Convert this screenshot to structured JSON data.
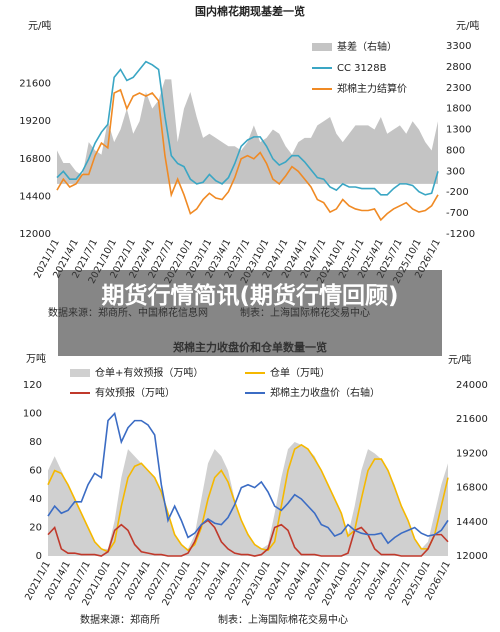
{
  "overlay_title": "期货行情简讯(期货行情回顾)",
  "chart_data": [
    {
      "type": "line",
      "title": "国内棉花期现基差一览",
      "y_label": "元/吨",
      "y2_label": "元/吨",
      "source": "数据来源：郑商所、中国棉花信息网",
      "credit": "制表：上海国际棉花交易中心",
      "categories": [
        "2021/1/1",
        null,
        null,
        "2021/4/1",
        null,
        null,
        "2021/7/1",
        null,
        null,
        "2021/10/1",
        null,
        null,
        "2022/1/1",
        null,
        null,
        "2022/4/1",
        null,
        null,
        "2022/7/1",
        null,
        null,
        "2022/10/1",
        null,
        null,
        "2023/1/1",
        null,
        null,
        "2023/4/1",
        null,
        null,
        "2023/7/1",
        null,
        null,
        "2023/10/1",
        null,
        null,
        "2024/1/1",
        null,
        null,
        "2024/4/1",
        null,
        null,
        "2024/7/1",
        null,
        null,
        "2024/10/1",
        null,
        null,
        "2025/1/1",
        null,
        null,
        "2025/4/1",
        null,
        null,
        "2025/7/1",
        null,
        null,
        "2025/10/1",
        null,
        null,
        "2026/1/1"
      ],
      "ylim": [
        12000,
        24000
      ],
      "yticks": [
        12000,
        14400,
        16800,
        19200,
        21600
      ],
      "y2lim": [
        -1200,
        3300
      ],
      "y2ticks": [
        -1200,
        -700,
        -200,
        300,
        800,
        1300,
        1800,
        2300,
        2800,
        3300
      ],
      "grid": false,
      "series": [
        {
          "name": "基差（右轴）",
          "type": "area",
          "axis": "y2",
          "color": "#c4c4c4",
          "values": [
            800,
            500,
            500,
            300,
            200,
            1000,
            800,
            700,
            1500,
            1000,
            1300,
            1800,
            1200,
            1500,
            2200,
            1800,
            2000,
            2500,
            2500,
            1000,
            1800,
            2200,
            1600,
            1100,
            1200,
            1100,
            1000,
            900,
            900,
            800,
            1000,
            1400,
            1000,
            1100,
            1300,
            1200,
            900,
            700,
            1000,
            1100,
            1100,
            1400,
            1500,
            1600,
            1200,
            1000,
            1200,
            1400,
            1400,
            1400,
            1300,
            1600,
            1200,
            1300,
            1400,
            1200,
            1500,
            1300,
            1000,
            800,
            1500
          ]
        },
        {
          "name": "CC 3128B",
          "type": "line",
          "color": "#3aa6c4",
          "values": [
            15600,
            16000,
            15500,
            15500,
            16000,
            16800,
            17800,
            18500,
            19000,
            22000,
            22500,
            21800,
            22000,
            22500,
            23000,
            22800,
            22500,
            19500,
            17000,
            16500,
            16300,
            15500,
            15200,
            15300,
            15800,
            15400,
            15200,
            15600,
            16500,
            17600,
            18000,
            18200,
            18200,
            17600,
            16800,
            16400,
            16600,
            17000,
            17000,
            16600,
            16100,
            15600,
            15500,
            15000,
            14800,
            15200,
            15000,
            15000,
            14900,
            14900,
            14900,
            14500,
            14500,
            14900,
            15200,
            15200,
            15100,
            14700,
            14500,
            14600,
            16000
          ]
        },
        {
          "name": "郑棉主力结算价",
          "type": "line",
          "color": "#f08a24",
          "values": [
            14800,
            15500,
            15000,
            15200,
            15800,
            15800,
            17000,
            17800,
            17500,
            21000,
            21200,
            20000,
            20800,
            21000,
            20800,
            21000,
            20500,
            17000,
            14500,
            15500,
            14500,
            13300,
            13600,
            14200,
            14600,
            14300,
            14200,
            14700,
            15600,
            16800,
            17000,
            16800,
            17200,
            16500,
            15500,
            15200,
            15700,
            16300,
            16000,
            15500,
            15000,
            14200,
            14000,
            13400,
            13600,
            14200,
            13800,
            13600,
            13500,
            13500,
            13600,
            12900,
            13300,
            13600,
            13800,
            14000,
            13600,
            13400,
            13500,
            13800,
            14500
          ]
        }
      ]
    },
    {
      "type": "line",
      "title": "郑棉主力收盘价和仓单数量一览",
      "y_label": "万吨",
      "y2_label": "元/吨",
      "source": "数据来源：郑商所",
      "credit": "制表：上海国际棉花交易中心",
      "categories": [
        "2021/1/1",
        null,
        null,
        "2021/4/1",
        null,
        null,
        "2021/7/1",
        null,
        null,
        "2021/10/1",
        null,
        null,
        "2022/1/1",
        null,
        null,
        "2022/4/1",
        null,
        null,
        "2022/7/1",
        null,
        null,
        "2022/10/1",
        null,
        null,
        "2023/1/1",
        null,
        null,
        "2023/4/1",
        null,
        null,
        "2023/7/1",
        null,
        null,
        "2023/10/1",
        null,
        null,
        "2024/1/1",
        null,
        null,
        "2024/4/1",
        null,
        null,
        "2024/7/1",
        null,
        null,
        "2024/10/1",
        null,
        null,
        "2025/1/1",
        null,
        null,
        "2025/4/1",
        null,
        null,
        "2025/7/1",
        null,
        null,
        "2025/10/1",
        null,
        null,
        "2026/1/1"
      ],
      "ylim": [
        0,
        120
      ],
      "yticks": [
        0,
        20,
        40,
        60,
        80,
        100,
        120
      ],
      "y2lim": [
        12000,
        24000
      ],
      "y2ticks": [
        12000,
        14400,
        16800,
        19200,
        21600,
        24000
      ],
      "grid": false,
      "series": [
        {
          "name": "仓单+有效预报（万吨）",
          "type": "area",
          "color": "#d0d0d0",
          "values": [
            60,
            70,
            60,
            50,
            40,
            30,
            20,
            10,
            5,
            5,
            25,
            55,
            75,
            70,
            65,
            60,
            55,
            45,
            30,
            15,
            8,
            5,
            15,
            40,
            65,
            75,
            70,
            60,
            40,
            25,
            15,
            8,
            5,
            8,
            30,
            55,
            75,
            80,
            78,
            75,
            70,
            60,
            50,
            40,
            30,
            15,
            35,
            60,
            75,
            72,
            68,
            60,
            50,
            35,
            25,
            12,
            5,
            10,
            30,
            50,
            65
          ]
        },
        {
          "name": "仓单（万吨）",
          "type": "line",
          "color": "#f5b800",
          "values": [
            50,
            60,
            58,
            50,
            40,
            30,
            20,
            10,
            5,
            3,
            10,
            35,
            55,
            63,
            65,
            60,
            55,
            45,
            30,
            15,
            8,
            4,
            8,
            20,
            40,
            55,
            60,
            52,
            38,
            25,
            15,
            8,
            5,
            4,
            10,
            35,
            60,
            75,
            78,
            75,
            68,
            60,
            50,
            40,
            30,
            14,
            18,
            40,
            60,
            68,
            68,
            60,
            48,
            35,
            25,
            12,
            5,
            5,
            15,
            35,
            55
          ]
        },
        {
          "name": "有效预报（万吨）",
          "type": "line",
          "color": "#c0392b",
          "values": [
            15,
            20,
            5,
            2,
            2,
            1,
            1,
            1,
            0,
            3,
            18,
            22,
            18,
            8,
            3,
            2,
            1,
            1,
            0,
            0,
            0,
            2,
            10,
            22,
            25,
            20,
            10,
            5,
            2,
            1,
            1,
            0,
            1,
            5,
            20,
            22,
            18,
            6,
            1,
            1,
            1,
            0,
            0,
            0,
            0,
            2,
            18,
            20,
            15,
            5,
            1,
            1,
            1,
            0,
            0,
            0,
            0,
            5,
            15,
            15,
            10
          ]
        },
        {
          "name": "郑棉主力收盘价（右轴）",
          "type": "line",
          "axis": "y2",
          "color": "#3b6cc4",
          "values": [
            14800,
            15500,
            15000,
            15200,
            15800,
            15800,
            17000,
            17800,
            17500,
            21500,
            22000,
            20000,
            21000,
            21500,
            21500,
            21200,
            20500,
            17000,
            14500,
            15500,
            14500,
            13300,
            13600,
            14200,
            14600,
            14300,
            14200,
            14700,
            15600,
            16800,
            17000,
            16800,
            17200,
            16500,
            15500,
            15200,
            15700,
            16300,
            16000,
            15500,
            15000,
            14200,
            14000,
            13400,
            13600,
            14200,
            13800,
            13600,
            13500,
            13500,
            13600,
            12900,
            13300,
            13600,
            13800,
            14000,
            13600,
            13400,
            13500,
            13800,
            14500
          ]
        }
      ]
    }
  ]
}
